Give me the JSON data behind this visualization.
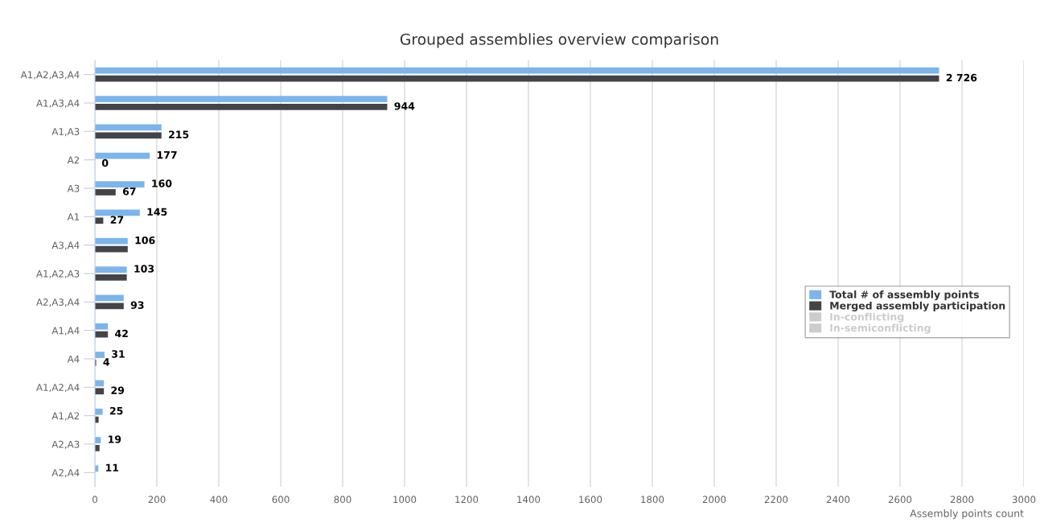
{
  "chart_data": {
    "type": "bar",
    "orientation": "horizontal",
    "title": "Grouped assemblies overview comparison",
    "xlabel": "Assembly points count",
    "categories": [
      "A1,A2,A3,A4",
      "A1,A3,A4",
      "A1,A3",
      "A2",
      "A3",
      "A1",
      "A3,A4",
      "A1,A2,A3",
      "A2,A3,A4",
      "A1,A4",
      "A4",
      "A1,A2,A4",
      "A1,A2",
      "A2,A3",
      "A2,A4"
    ],
    "series": [
      {
        "name": "Total # of assembly points",
        "color": "#7cb5ec",
        "values": [
          2726,
          944,
          215,
          177,
          160,
          145,
          106,
          103,
          93,
          42,
          31,
          29,
          25,
          19,
          11
        ],
        "value_labels": [
          null,
          null,
          null,
          "177",
          "160",
          "145",
          "106",
          "103",
          null,
          null,
          "31",
          null,
          "25",
          "19",
          "11"
        ]
      },
      {
        "name": "Merged assembly participation",
        "color": "#434348",
        "values": [
          2726,
          944,
          215,
          0,
          67,
          27,
          106,
          103,
          93,
          42,
          4,
          29,
          12,
          15,
          0
        ],
        "value_labels": [
          "2 726",
          "944",
          "215",
          "0",
          "67",
          "27",
          null,
          null,
          "93",
          "42",
          "4",
          "29",
          null,
          null,
          null
        ]
      },
      {
        "name": "In-conflicting",
        "color": "#cccccc",
        "values": [
          null,
          null,
          null,
          null,
          null,
          null,
          null,
          null,
          null,
          null,
          null,
          null,
          null,
          null,
          null
        ]
      },
      {
        "name": "In-semiconflicting",
        "color": "#cccccc",
        "values": [
          null,
          null,
          null,
          null,
          null,
          null,
          null,
          null,
          null,
          null,
          null,
          null,
          null,
          null,
          null
        ]
      }
    ],
    "xlim": [
      0,
      3000
    ],
    "xticks": [
      0,
      200,
      400,
      600,
      800,
      1000,
      1200,
      1400,
      1600,
      1800,
      2000,
      2200,
      2400,
      2600,
      2800,
      3000
    ],
    "grid": "x",
    "legend": "right"
  }
}
